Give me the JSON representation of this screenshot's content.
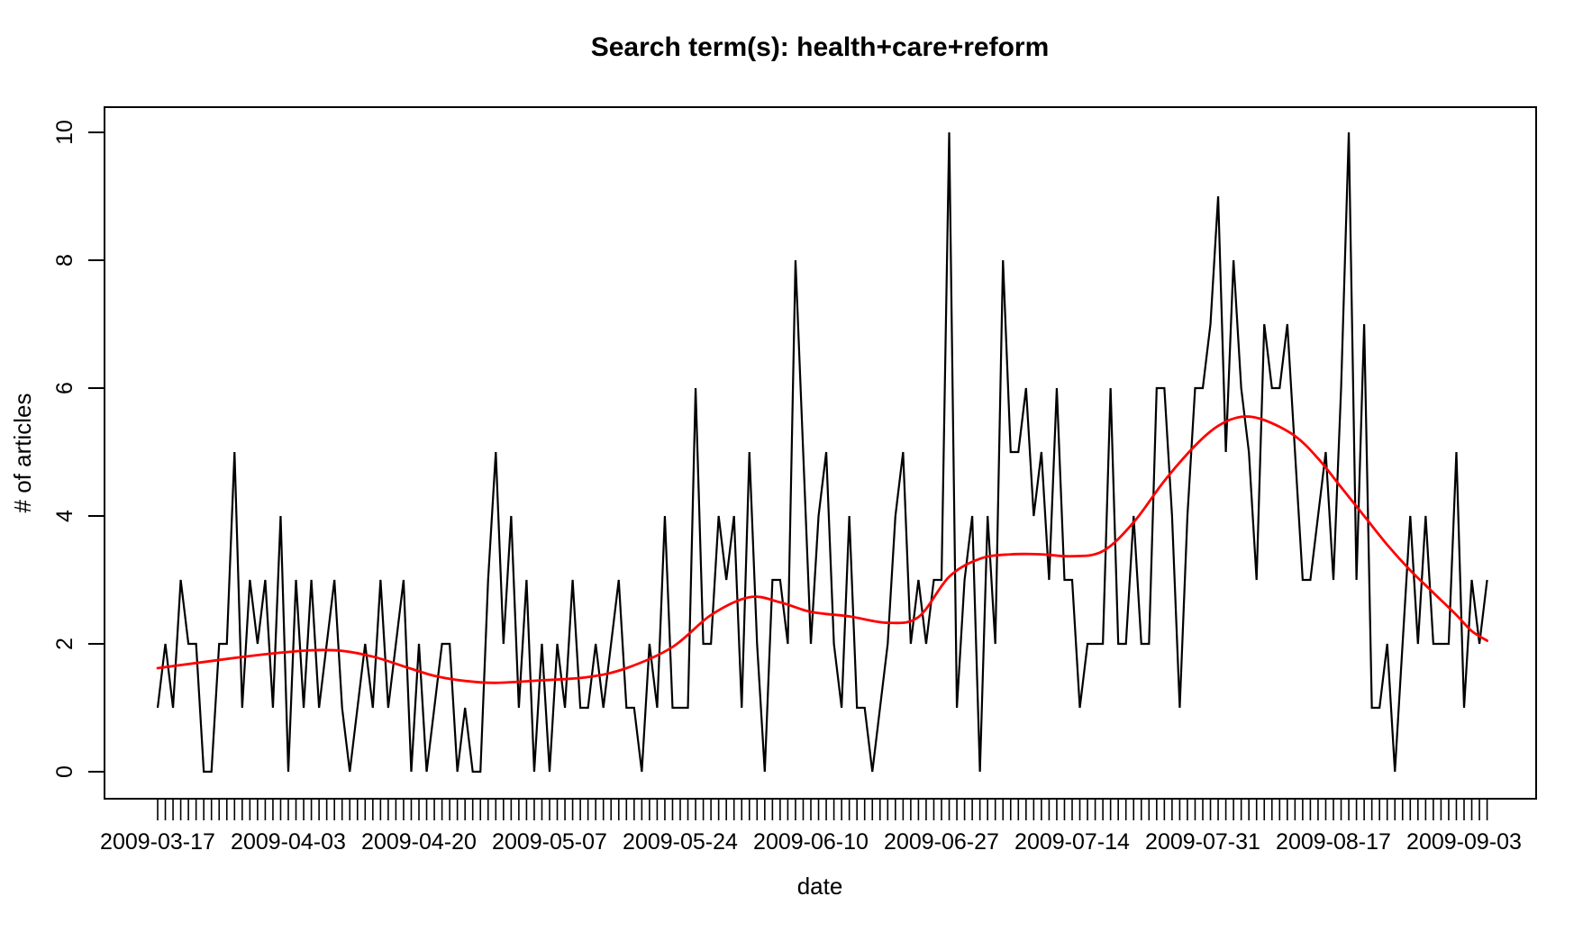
{
  "chart_data": {
    "type": "line",
    "title": "Search term(s): health+care+reform",
    "xlabel": "date",
    "ylabel": "# of articles",
    "start_date": "2009-03-17",
    "end_date": "2009-09-06",
    "n_points": 174,
    "ylim": [
      0,
      10
    ],
    "y_ticks": [
      0,
      2,
      4,
      6,
      8,
      10
    ],
    "x_tick_interval_days": 17,
    "x_tick_labels": [
      "2009-03-17",
      "2009-04-03",
      "2009-04-20",
      "2009-05-07",
      "2009-05-24",
      "2009-06-10",
      "2009-06-27",
      "2009-07-14",
      "2009-07-31",
      "2009-08-17",
      "2009-09-03"
    ],
    "grid": "off",
    "legend": "none",
    "series": [
      {
        "name": "articles-per-day",
        "color": "#000000",
        "values": [
          1,
          2,
          1,
          3,
          2,
          2,
          0,
          0,
          2,
          2,
          5,
          1,
          3,
          2,
          3,
          1,
          4,
          0,
          3,
          1,
          3,
          1,
          2,
          3,
          1,
          0,
          1,
          2,
          1,
          3,
          1,
          2,
          3,
          0,
          2,
          0,
          1,
          2,
          2,
          0,
          1,
          0,
          0,
          3,
          5,
          2,
          4,
          1,
          3,
          0,
          2,
          0,
          2,
          1,
          3,
          1,
          1,
          2,
          1,
          2,
          3,
          1,
          1,
          0,
          2,
          1,
          4,
          1,
          1,
          1,
          6,
          2,
          2,
          4,
          3,
          4,
          1,
          5,
          2,
          0,
          3,
          3,
          2,
          8,
          5,
          2,
          4,
          5,
          2,
          1,
          4,
          1,
          1,
          0,
          1,
          2,
          4,
          5,
          2,
          3,
          2,
          3,
          3,
          10,
          1,
          3,
          4,
          0,
          4,
          2,
          8,
          5,
          5,
          6,
          4,
          5,
          3,
          6,
          3,
          3,
          1,
          2,
          2,
          2,
          6,
          2,
          2,
          4,
          2,
          2,
          6,
          6,
          4,
          1,
          4,
          6,
          6,
          7,
          9,
          5,
          8,
          6,
          5,
          3,
          7,
          6,
          6,
          7,
          5,
          3,
          3,
          4,
          5,
          3,
          6,
          10,
          3,
          7,
          1,
          1,
          2,
          0,
          2,
          4,
          2,
          4,
          2,
          2,
          2,
          5,
          1,
          3,
          2,
          3
        ]
      },
      {
        "name": "loess-smooth",
        "color": "#FF0000",
        "points": [
          [
            0,
            1.62
          ],
          [
            5,
            1.7
          ],
          [
            10,
            1.78
          ],
          [
            15,
            1.85
          ],
          [
            20,
            1.9
          ],
          [
            24,
            1.89
          ],
          [
            28,
            1.8
          ],
          [
            32,
            1.65
          ],
          [
            36,
            1.5
          ],
          [
            40,
            1.42
          ],
          [
            44,
            1.39
          ],
          [
            50,
            1.43
          ],
          [
            56,
            1.48
          ],
          [
            61,
            1.62
          ],
          [
            67,
            1.95
          ],
          [
            72,
            2.45
          ],
          [
            77,
            2.73
          ],
          [
            81,
            2.65
          ],
          [
            85,
            2.5
          ],
          [
            90,
            2.43
          ],
          [
            95,
            2.33
          ],
          [
            99,
            2.42
          ],
          [
            103,
            3.05
          ],
          [
            107,
            3.33
          ],
          [
            111,
            3.4
          ],
          [
            115,
            3.4
          ],
          [
            119,
            3.37
          ],
          [
            123,
            3.45
          ],
          [
            127,
            3.9
          ],
          [
            131,
            4.55
          ],
          [
            135,
            5.1
          ],
          [
            138,
            5.41
          ],
          [
            141,
            5.55
          ],
          [
            144,
            5.5
          ],
          [
            148,
            5.25
          ],
          [
            151,
            4.9
          ],
          [
            154,
            4.45
          ],
          [
            157,
            4.0
          ],
          [
            160,
            3.55
          ],
          [
            163,
            3.15
          ],
          [
            166,
            2.8
          ],
          [
            169,
            2.45
          ],
          [
            171,
            2.2
          ],
          [
            173,
            2.05
          ]
        ]
      }
    ]
  }
}
